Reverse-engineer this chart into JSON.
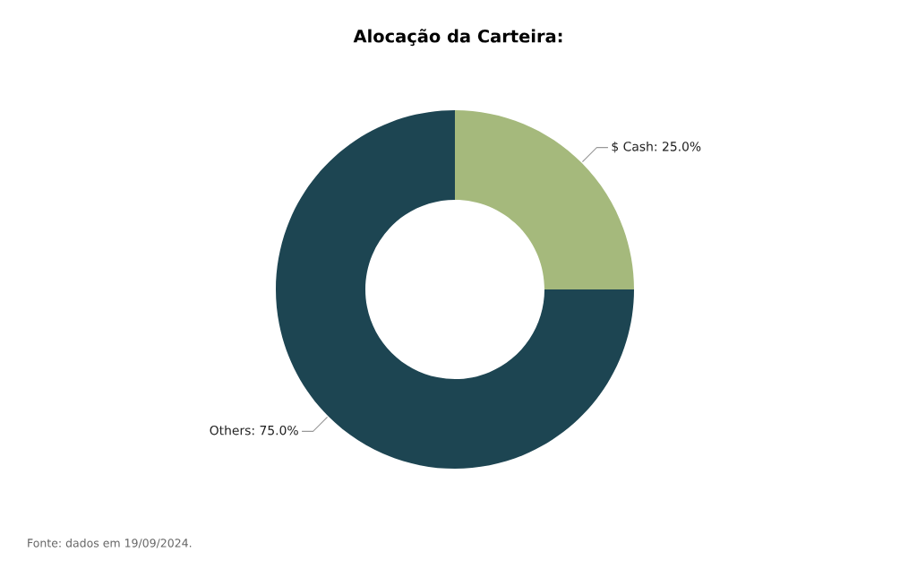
{
  "chart_data": {
    "type": "donut",
    "title": "Alocação da Carteira:",
    "categories": [
      "$ Cash",
      "Others"
    ],
    "value_labels": [
      "25.0%",
      "75.0%"
    ],
    "values": [
      25,
      75
    ],
    "colors": [
      "#a5b97c",
      "#1d4552"
    ],
    "legend": false,
    "annotations": [
      "Fonte: dados em 19/09/2024."
    ]
  }
}
